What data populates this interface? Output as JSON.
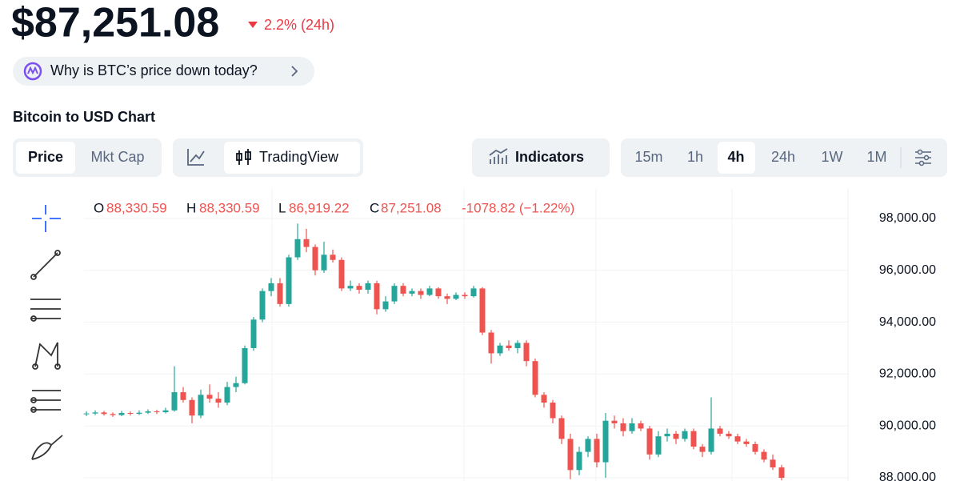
{
  "header": {
    "price": "$87,251.08",
    "change": "2.2% (24h)"
  },
  "ai_prompt": "Why is BTC’s price down today?",
  "chart_title": "Bitcoin to USD Chart",
  "toolbar": {
    "view_tabs": [
      "Price",
      "Mkt Cap"
    ],
    "chart_tab": "TradingView",
    "indicators": "Indicators",
    "timeframes": [
      "15m",
      "1h",
      "4h",
      "24h",
      "1W",
      "1M"
    ]
  },
  "chart_data": {
    "type": "candlestick",
    "ohlc_legend": [
      {
        "key": "O",
        "value": "88,330.59"
      },
      {
        "key": "H",
        "value": "88,330.59"
      },
      {
        "key": "L",
        "value": "86,919.22"
      },
      {
        "key": "C",
        "value": "87,251.08"
      }
    ],
    "ohlc_change": "-1078.82 (−1.22%)",
    "up_color": "#26a69a",
    "down_color": "#ef5350",
    "grid": true,
    "ylim": [
      87877,
      99015
    ],
    "yticks": [
      {
        "value": 88000,
        "label": "88,000.00"
      },
      {
        "value": 90000,
        "label": "90,000.00"
      },
      {
        "value": 92000,
        "label": "92,000.00"
      },
      {
        "value": 94000,
        "label": "94,000.00"
      },
      {
        "value": 96000,
        "label": "96,000.00"
      },
      {
        "value": 98000,
        "label": "98,000.00"
      }
    ],
    "candles": [
      [
        90450,
        90560,
        90380,
        90480
      ],
      [
        90480,
        90600,
        90420,
        90520
      ],
      [
        90520,
        90580,
        90400,
        90460
      ],
      [
        90460,
        90520,
        90350,
        90420
      ],
      [
        90420,
        90580,
        90380,
        90500
      ],
      [
        90500,
        90560,
        90400,
        90470
      ],
      [
        90470,
        90600,
        90420,
        90510
      ],
      [
        90510,
        90640,
        90460,
        90560
      ],
      [
        90560,
        90620,
        90460,
        90530
      ],
      [
        90530,
        90700,
        90480,
        90600
      ],
      [
        90600,
        92300,
        90550,
        91300
      ],
      [
        91300,
        91500,
        90900,
        91000
      ],
      [
        91000,
        91100,
        90100,
        90400
      ],
      [
        90400,
        91400,
        90300,
        91200
      ],
      [
        91200,
        91600,
        90900,
        91050
      ],
      [
        91050,
        91300,
        90700,
        90900
      ],
      [
        90900,
        91700,
        90800,
        91500
      ],
      [
        91500,
        91900,
        91300,
        91650
      ],
      [
        91650,
        93100,
        91600,
        93000
      ],
      [
        93000,
        94200,
        92900,
        94100
      ],
      [
        94100,
        95300,
        94000,
        95200
      ],
      [
        95200,
        95700,
        95000,
        95500
      ],
      [
        95500,
        95700,
        94600,
        94700
      ],
      [
        94700,
        96600,
        94600,
        96500
      ],
      [
        96500,
        97800,
        96400,
        97200
      ],
      [
        97200,
        97600,
        96700,
        96900
      ],
      [
        96900,
        97000,
        95800,
        96000
      ],
      [
        96000,
        97100,
        95900,
        96600
      ],
      [
        96600,
        96800,
        96300,
        96400
      ],
      [
        96400,
        96500,
        95200,
        95300
      ],
      [
        95300,
        95600,
        95200,
        95400
      ],
      [
        95400,
        95500,
        95100,
        95250
      ],
      [
        95250,
        95600,
        95100,
        95500
      ],
      [
        95500,
        95600,
        94300,
        94500
      ],
      [
        94500,
        95000,
        94400,
        94800
      ],
      [
        94800,
        95500,
        94700,
        95400
      ],
      [
        95400,
        95500,
        95000,
        95100
      ],
      [
        95100,
        95300,
        95000,
        95200
      ],
      [
        95200,
        95300,
        94900,
        95050
      ],
      [
        95050,
        95400,
        95000,
        95300
      ],
      [
        95300,
        95350,
        94900,
        95000
      ],
      [
        95000,
        95100,
        94700,
        94900
      ],
      [
        94900,
        95150,
        94850,
        95050
      ],
      [
        95050,
        95150,
        94900,
        95000
      ],
      [
        95000,
        95400,
        94950,
        95300
      ],
      [
        95300,
        95350,
        93500,
        93600
      ],
      [
        93600,
        93700,
        92400,
        92800
      ],
      [
        92800,
        93200,
        92700,
        93100
      ],
      [
        93100,
        93300,
        92900,
        93000
      ],
      [
        93000,
        93300,
        92800,
        93200
      ],
      [
        93200,
        93300,
        92300,
        92500
      ],
      [
        92500,
        92600,
        91100,
        91200
      ],
      [
        91200,
        91300,
        90700,
        90900
      ],
      [
        90900,
        91000,
        90100,
        90300
      ],
      [
        90300,
        90400,
        89300,
        89500
      ],
      [
        89500,
        89700,
        87950,
        88300
      ],
      [
        88300,
        89200,
        88100,
        89000
      ],
      [
        89000,
        89600,
        88800,
        89500
      ],
      [
        89500,
        89700,
        88400,
        88600
      ],
      [
        88600,
        90500,
        88000,
        90200
      ],
      [
        90200,
        90400,
        89900,
        90100
      ],
      [
        90100,
        90300,
        89600,
        89800
      ],
      [
        89800,
        90300,
        89700,
        90100
      ],
      [
        90100,
        90200,
        89800,
        89900
      ],
      [
        89900,
        90000,
        88700,
        88900
      ],
      [
        88900,
        89800,
        88800,
        89600
      ],
      [
        89600,
        89900,
        89400,
        89700
      ],
      [
        89700,
        89800,
        89300,
        89500
      ],
      [
        89500,
        89900,
        89400,
        89800
      ],
      [
        89800,
        89900,
        89100,
        89200
      ],
      [
        89200,
        89300,
        88800,
        89000
      ],
      [
        89000,
        91100,
        88900,
        89900
      ],
      [
        89900,
        90000,
        89600,
        89700
      ],
      [
        89700,
        89800,
        89500,
        89600
      ],
      [
        89600,
        89700,
        89300,
        89400
      ],
      [
        89400,
        89500,
        89200,
        89300
      ],
      [
        89300,
        89400,
        88900,
        89000
      ],
      [
        89000,
        89100,
        88600,
        88700
      ],
      [
        88700,
        88900,
        88300,
        88400
      ],
      [
        88400,
        88500,
        87900,
        88000
      ]
    ]
  }
}
